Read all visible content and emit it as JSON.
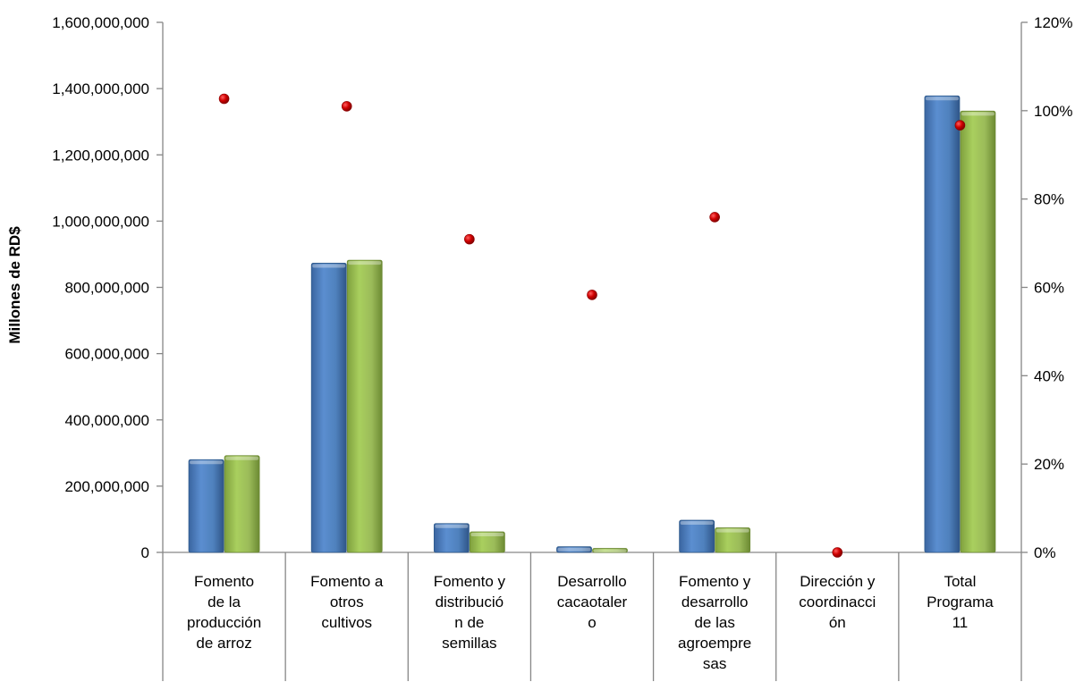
{
  "chart_data": {
    "type": "bar",
    "categories": [
      [
        "Fomento",
        "de la",
        "producción",
        "de arroz"
      ],
      [
        "Fomento a",
        "otros",
        "cultivos"
      ],
      [
        "Fomento y",
        "distribució",
        "n de",
        "semillas"
      ],
      [
        "Desarrollo",
        "cacaotaler",
        "o"
      ],
      [
        "Fomento y",
        "desarrollo",
        "de las",
        "agroempre",
        "sas"
      ],
      [
        "Dirección y",
        "coordinacci",
        "ón"
      ],
      [
        "Total",
        "Programa",
        "11"
      ]
    ],
    "series": [
      {
        "values": [
          280000000,
          873000000,
          87000000,
          17000000,
          97000000,
          0,
          1378000000
        ],
        "color": "#4F81BD",
        "axis": "left"
      },
      {
        "values": [
          292000000,
          882000000,
          62000000,
          12000000,
          74000000,
          0,
          1332000000
        ],
        "color": "#9BBB59",
        "axis": "left"
      },
      {
        "values": [
          1.027,
          1.01,
          0.709,
          0.583,
          0.759,
          0,
          0.967
        ],
        "color": "#C00000",
        "axis": "right",
        "type": "scatter"
      }
    ],
    "ylabel": "Millones de RD$",
    "ylim": [
      0,
      1600000000
    ],
    "y_ticks": [
      "0",
      "200,000,000",
      "400,000,000",
      "600,000,000",
      "800,000,000",
      "1,000,000,000",
      "1,200,000,000",
      "1,400,000,000",
      "1,600,000,000"
    ],
    "y2lim": [
      0,
      1.2
    ],
    "y2_ticks": [
      "0%",
      "20%",
      "40%",
      "60%",
      "80%",
      "100%",
      "120%"
    ],
    "grid": false,
    "legend": "none"
  }
}
